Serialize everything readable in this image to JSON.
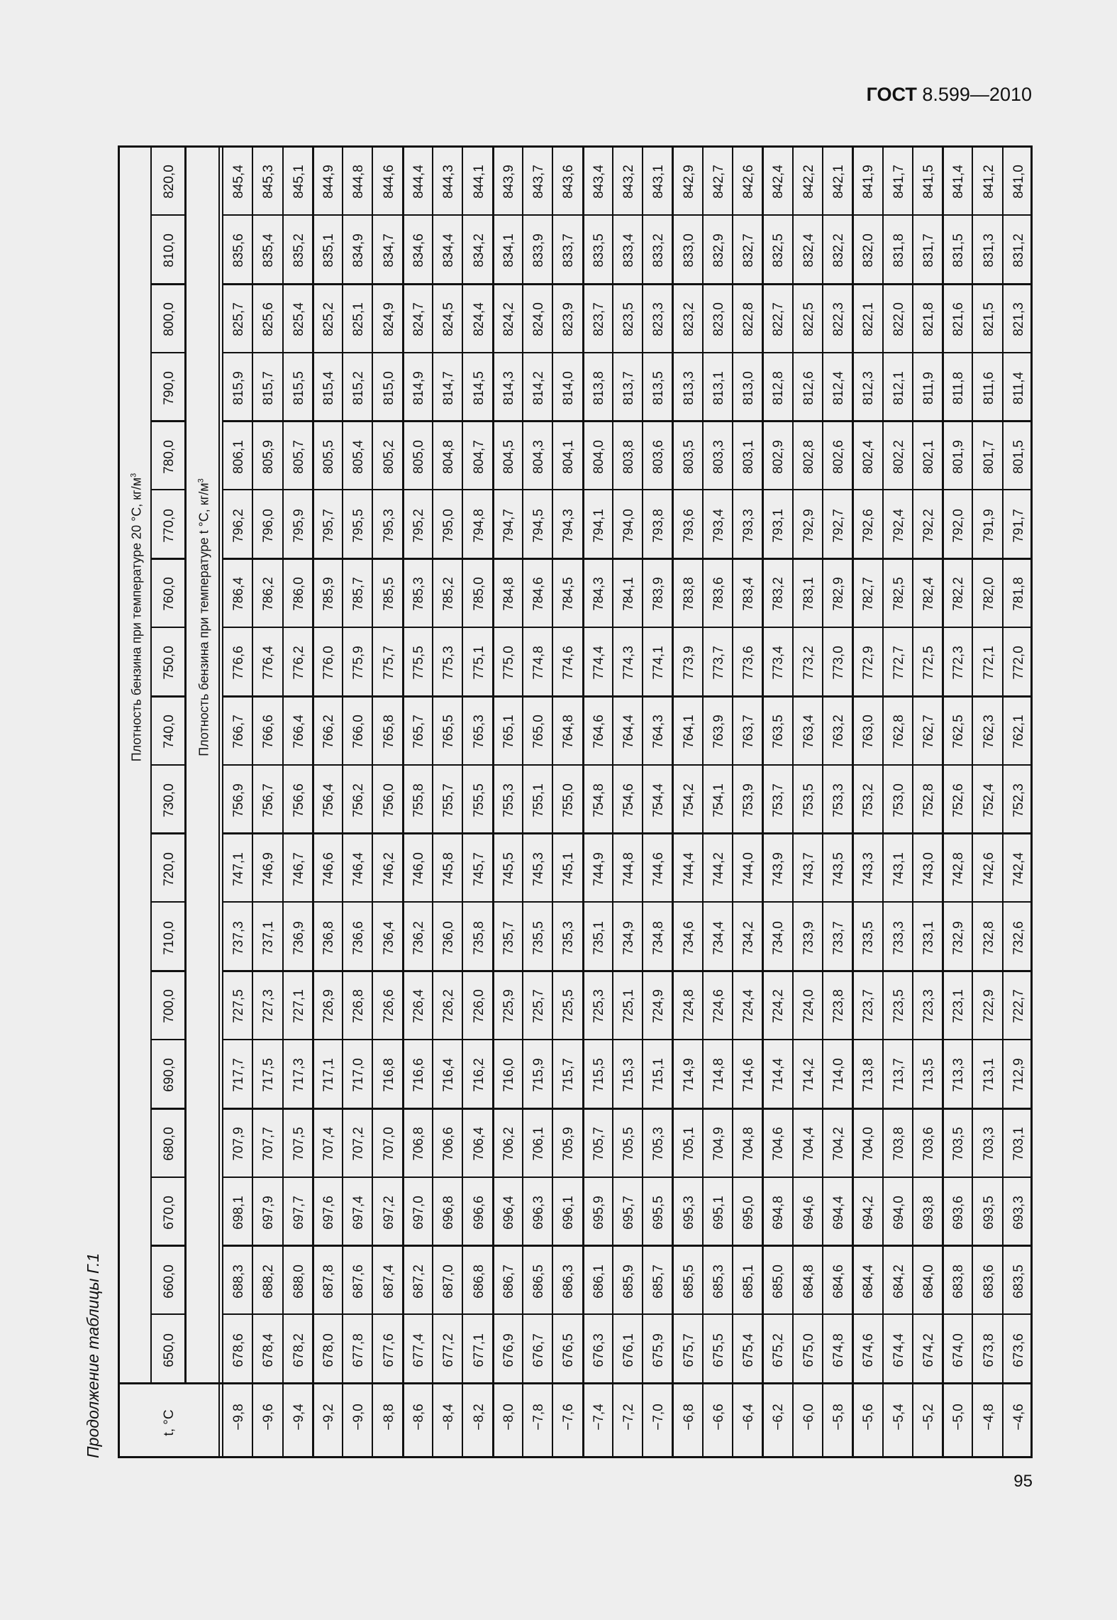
{
  "header": {
    "doc_prefix": "ГОСТ",
    "doc_number": "8.599—2010"
  },
  "caption": "Продолжение таблицы Г.1",
  "page_number": "95",
  "table": {
    "temp_header": "t, °С",
    "span_header_20": "Плотность бензина при температуре 20 °С, кг/м",
    "span_header_t": "Плотность бензина при температуре t °С, кг/м",
    "unit_sup": "3",
    "temperatures": [
      "−9,8",
      "−9,6",
      "−9,4",
      "−9,2",
      "−9,0",
      "−8,8",
      "−8,6",
      "−8,4",
      "−8,2",
      "−8,0",
      "−7,8",
      "−7,6",
      "−7,4",
      "−7,2",
      "−7,0",
      "−6,8",
      "−6,6",
      "−6,4",
      "−6,2",
      "−6,0",
      "−5,8",
      "−5,6",
      "−5,4",
      "−5,2",
      "−5,0",
      "−4,8",
      "−4,6"
    ],
    "columns": [
      {
        "density20": "820,0",
        "values": [
          "845,4",
          "845,3",
          "845,1",
          "844,9",
          "844,8",
          "844,6",
          "844,4",
          "844,3",
          "844,1",
          "843,9",
          "843,7",
          "843,6",
          "843,4",
          "843,2",
          "843,1",
          "842,9",
          "842,7",
          "842,6",
          "842,4",
          "842,2",
          "842,1",
          "841,9",
          "841,7",
          "841,5",
          "841,4",
          "841,2",
          "841,0"
        ]
      },
      {
        "density20": "810,0",
        "values": [
          "835,6",
          "835,4",
          "835,2",
          "835,1",
          "834,9",
          "834,7",
          "834,6",
          "834,4",
          "834,2",
          "834,1",
          "833,9",
          "833,7",
          "833,5",
          "833,4",
          "833,2",
          "833,0",
          "832,9",
          "832,7",
          "832,5",
          "832,4",
          "832,2",
          "832,0",
          "831,8",
          "831,7",
          "831,5",
          "831,3",
          "831,2"
        ]
      },
      {
        "density20": "800,0",
        "values": [
          "825,7",
          "825,6",
          "825,4",
          "825,2",
          "825,1",
          "824,9",
          "824,7",
          "824,5",
          "824,4",
          "824,2",
          "824,0",
          "823,9",
          "823,7",
          "823,5",
          "823,3",
          "823,2",
          "823,0",
          "822,8",
          "822,7",
          "822,5",
          "822,3",
          "822,1",
          "822,0",
          "821,8",
          "821,6",
          "821,5",
          "821,3"
        ]
      },
      {
        "density20": "790,0",
        "values": [
          "815,9",
          "815,7",
          "815,5",
          "815,4",
          "815,2",
          "815,0",
          "814,9",
          "814,7",
          "814,5",
          "814,3",
          "814,2",
          "814,0",
          "813,8",
          "813,7",
          "813,5",
          "813,3",
          "813,1",
          "813,0",
          "812,8",
          "812,6",
          "812,4",
          "812,3",
          "812,1",
          "811,9",
          "811,8",
          "811,6",
          "811,4"
        ]
      },
      {
        "density20": "780,0",
        "values": [
          "806,1",
          "805,9",
          "805,7",
          "805,5",
          "805,4",
          "805,2",
          "805,0",
          "804,8",
          "804,7",
          "804,5",
          "804,3",
          "804,1",
          "804,0",
          "803,8",
          "803,6",
          "803,5",
          "803,3",
          "803,1",
          "802,9",
          "802,8",
          "802,6",
          "802,4",
          "802,2",
          "802,1",
          "801,9",
          "801,7",
          "801,5"
        ]
      },
      {
        "density20": "770,0",
        "values": [
          "796,2",
          "796,0",
          "795,9",
          "795,7",
          "795,5",
          "795,3",
          "795,2",
          "795,0",
          "794,8",
          "794,7",
          "794,5",
          "794,3",
          "794,1",
          "794,0",
          "793,8",
          "793,6",
          "793,4",
          "793,3",
          "793,1",
          "792,9",
          "792,7",
          "792,6",
          "792,4",
          "792,2",
          "792,0",
          "791,9",
          "791,7"
        ]
      },
      {
        "density20": "760,0",
        "values": [
          "786,4",
          "786,2",
          "786,0",
          "785,9",
          "785,7",
          "785,5",
          "785,3",
          "785,2",
          "785,0",
          "784,8",
          "784,6",
          "784,5",
          "784,3",
          "784,1",
          "783,9",
          "783,8",
          "783,6",
          "783,4",
          "783,2",
          "783,1",
          "782,9",
          "782,7",
          "782,5",
          "782,4",
          "782,2",
          "782,0",
          "781,8"
        ]
      },
      {
        "density20": "750,0",
        "values": [
          "776,6",
          "776,4",
          "776,2",
          "776,0",
          "775,9",
          "775,7",
          "775,5",
          "775,3",
          "775,1",
          "775,0",
          "774,8",
          "774,6",
          "774,4",
          "774,3",
          "774,1",
          "773,9",
          "773,7",
          "773,6",
          "773,4",
          "773,2",
          "773,0",
          "772,9",
          "772,7",
          "772,5",
          "772,3",
          "772,1",
          "772,0"
        ]
      },
      {
        "density20": "740,0",
        "values": [
          "766,7",
          "766,6",
          "766,4",
          "766,2",
          "766,0",
          "765,8",
          "765,7",
          "765,5",
          "765,3",
          "765,1",
          "765,0",
          "764,8",
          "764,6",
          "764,4",
          "764,3",
          "764,1",
          "763,9",
          "763,7",
          "763,5",
          "763,4",
          "763,2",
          "763,0",
          "762,8",
          "762,7",
          "762,5",
          "762,3",
          "762,1"
        ]
      },
      {
        "density20": "730,0",
        "values": [
          "756,9",
          "756,7",
          "756,6",
          "756,4",
          "756,2",
          "756,0",
          "755,8",
          "755,7",
          "755,5",
          "755,3",
          "755,1",
          "755,0",
          "754,8",
          "754,6",
          "754,4",
          "754,2",
          "754,1",
          "753,9",
          "753,7",
          "753,5",
          "753,3",
          "753,2",
          "753,0",
          "752,8",
          "752,6",
          "752,4",
          "752,3"
        ]
      },
      {
        "density20": "720,0",
        "values": [
          "747,1",
          "746,9",
          "746,7",
          "746,6",
          "746,4",
          "746,2",
          "746,0",
          "745,8",
          "745,7",
          "745,5",
          "745,3",
          "745,1",
          "744,9",
          "744,8",
          "744,6",
          "744,4",
          "744,2",
          "744,0",
          "743,9",
          "743,7",
          "743,5",
          "743,3",
          "743,1",
          "743,0",
          "742,8",
          "742,6",
          "742,4"
        ]
      },
      {
        "density20": "710,0",
        "values": [
          "737,3",
          "737,1",
          "736,9",
          "736,8",
          "736,6",
          "736,4",
          "736,2",
          "736,0",
          "735,8",
          "735,7",
          "735,5",
          "735,3",
          "735,1",
          "734,9",
          "734,8",
          "734,6",
          "734,4",
          "734,2",
          "734,0",
          "733,9",
          "733,7",
          "733,5",
          "733,3",
          "733,1",
          "732,9",
          "732,8",
          "732,6"
        ]
      },
      {
        "density20": "700,0",
        "values": [
          "727,5",
          "727,3",
          "727,1",
          "726,9",
          "726,8",
          "726,6",
          "726,4",
          "726,2",
          "726,0",
          "725,9",
          "725,7",
          "725,5",
          "725,3",
          "725,1",
          "724,9",
          "724,8",
          "724,6",
          "724,4",
          "724,2",
          "724,0",
          "723,8",
          "723,7",
          "723,5",
          "723,3",
          "723,1",
          "722,9",
          "722,7"
        ]
      },
      {
        "density20": "690,0",
        "values": [
          "717,7",
          "717,5",
          "717,3",
          "717,1",
          "717,0",
          "716,8",
          "716,6",
          "716,4",
          "716,2",
          "716,0",
          "715,9",
          "715,7",
          "715,5",
          "715,3",
          "715,1",
          "714,9",
          "714,8",
          "714,6",
          "714,4",
          "714,2",
          "714,0",
          "713,8",
          "713,7",
          "713,5",
          "713,3",
          "713,1",
          "712,9"
        ]
      },
      {
        "density20": "680,0",
        "values": [
          "707,9",
          "707,7",
          "707,5",
          "707,4",
          "707,2",
          "707,0",
          "706,8",
          "706,6",
          "706,4",
          "706,2",
          "706,1",
          "705,9",
          "705,7",
          "705,5",
          "705,3",
          "705,1",
          "704,9",
          "704,8",
          "704,6",
          "704,4",
          "704,2",
          "704,0",
          "703,8",
          "703,6",
          "703,5",
          "703,3",
          "703,1"
        ]
      },
      {
        "density20": "670,0",
        "values": [
          "698,1",
          "697,9",
          "697,7",
          "697,6",
          "697,4",
          "697,2",
          "697,0",
          "696,8",
          "696,6",
          "696,4",
          "696,3",
          "696,1",
          "695,9",
          "695,7",
          "695,5",
          "695,3",
          "695,1",
          "695,0",
          "694,8",
          "694,6",
          "694,4",
          "694,2",
          "694,0",
          "693,8",
          "693,6",
          "693,5",
          "693,3"
        ]
      },
      {
        "density20": "660,0",
        "values": [
          "688,3",
          "688,2",
          "688,0",
          "687,8",
          "687,6",
          "687,4",
          "687,2",
          "687,0",
          "686,8",
          "686,7",
          "686,5",
          "686,3",
          "686,1",
          "685,9",
          "685,7",
          "685,5",
          "685,3",
          "685,1",
          "685,0",
          "684,8",
          "684,6",
          "684,4",
          "684,2",
          "684,0",
          "683,8",
          "683,6",
          "683,5"
        ]
      },
      {
        "density20": "650,0",
        "values": [
          "678,6",
          "678,4",
          "678,2",
          "678,0",
          "677,8",
          "677,6",
          "677,4",
          "677,2",
          "677,1",
          "676,9",
          "676,7",
          "676,5",
          "676,3",
          "676,1",
          "675,9",
          "675,7",
          "675,5",
          "675,4",
          "675,2",
          "675,0",
          "674,8",
          "674,6",
          "674,4",
          "674,2",
          "674,0",
          "673,8",
          "673,6"
        ]
      }
    ]
  }
}
